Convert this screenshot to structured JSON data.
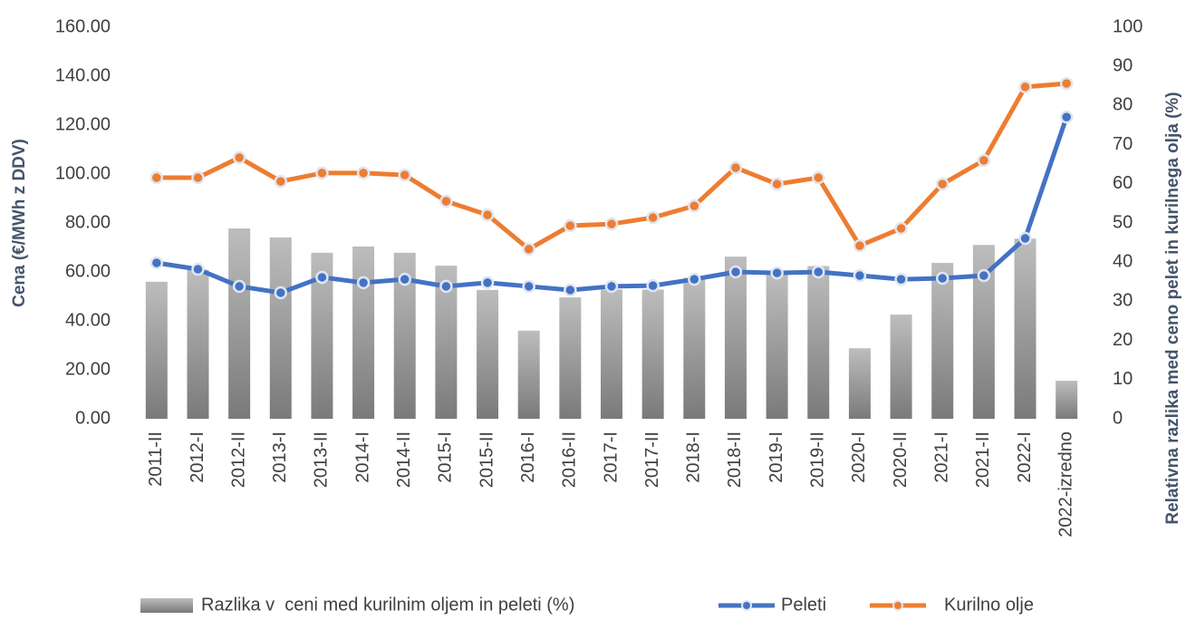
{
  "chart_data": {
    "type": "bar-line",
    "y_label": "Cena (€/MWh z DDV)",
    "y2_label": "Relativna razlika med ceno pelet in kurilnega olja (%)",
    "categories": [
      "2011-II",
      "2012-I",
      "2012-II",
      "2013-I",
      "2013-II",
      "2014-I",
      "2014-II",
      "2015-I",
      "2015-II",
      "2016-I",
      "2016-II",
      "2017-I",
      "2017-II",
      "2018-I",
      "2018-II",
      "2019-I",
      "2019-II",
      "2020-I",
      "2020-II",
      "2021-I",
      "2021-II",
      "2022-I",
      "2022-izredno"
    ],
    "series": [
      {
        "name": "Razlika v  ceni med kurilnim oljem in peleti (%)",
        "type": "bar",
        "axis": "y2",
        "color": "#8c8c8c",
        "values": [
          35,
          38,
          48.6,
          46.3,
          42.4,
          44,
          42.4,
          39.1,
          32.9,
          22.5,
          31,
          33,
          33,
          36,
          41.4,
          37,
          39,
          18,
          26.6,
          39.8,
          44.4,
          46,
          9.7
        ]
      },
      {
        "name": "Peleti",
        "type": "line",
        "color": "#4472c4",
        "values": [
          63.7,
          61.1,
          54.1,
          51.5,
          57.8,
          55.6,
          57,
          54.1,
          55.6,
          54.1,
          52.6,
          54.1,
          54.4,
          57,
          60,
          59.6,
          60,
          58.5,
          57,
          57.4,
          58.5,
          73.7,
          123.3
        ]
      },
      {
        "name": "Kurilno olje",
        "type": "line",
        "color": "#ed7d31",
        "values": [
          98.5,
          98.5,
          106.7,
          97,
          100.4,
          100.4,
          99.6,
          88.9,
          83.3,
          69.3,
          78.9,
          79.6,
          82.2,
          87,
          102.6,
          95.9,
          98.5,
          70.7,
          77.8,
          95.9,
          105.6,
          135.6,
          137
        ]
      }
    ],
    "ylim": [
      0,
      160
    ],
    "yticks": [
      {
        "value": 0,
        "label": "0.00"
      },
      {
        "value": 20,
        "label": "20.00"
      },
      {
        "value": 40,
        "label": "40.00"
      },
      {
        "value": 60,
        "label": "60.00"
      },
      {
        "value": 80,
        "label": "80.00"
      },
      {
        "value": 100,
        "label": "100.00"
      },
      {
        "value": 120,
        "label": "120.00"
      },
      {
        "value": 140,
        "label": "140.00"
      },
      {
        "value": 160,
        "label": "160.00"
      }
    ],
    "y2lim": [
      0,
      100
    ],
    "y2ticks": [
      0,
      10,
      20,
      30,
      40,
      50,
      60,
      70,
      80,
      90,
      100
    ],
    "grid": false,
    "legend": "bottom"
  }
}
